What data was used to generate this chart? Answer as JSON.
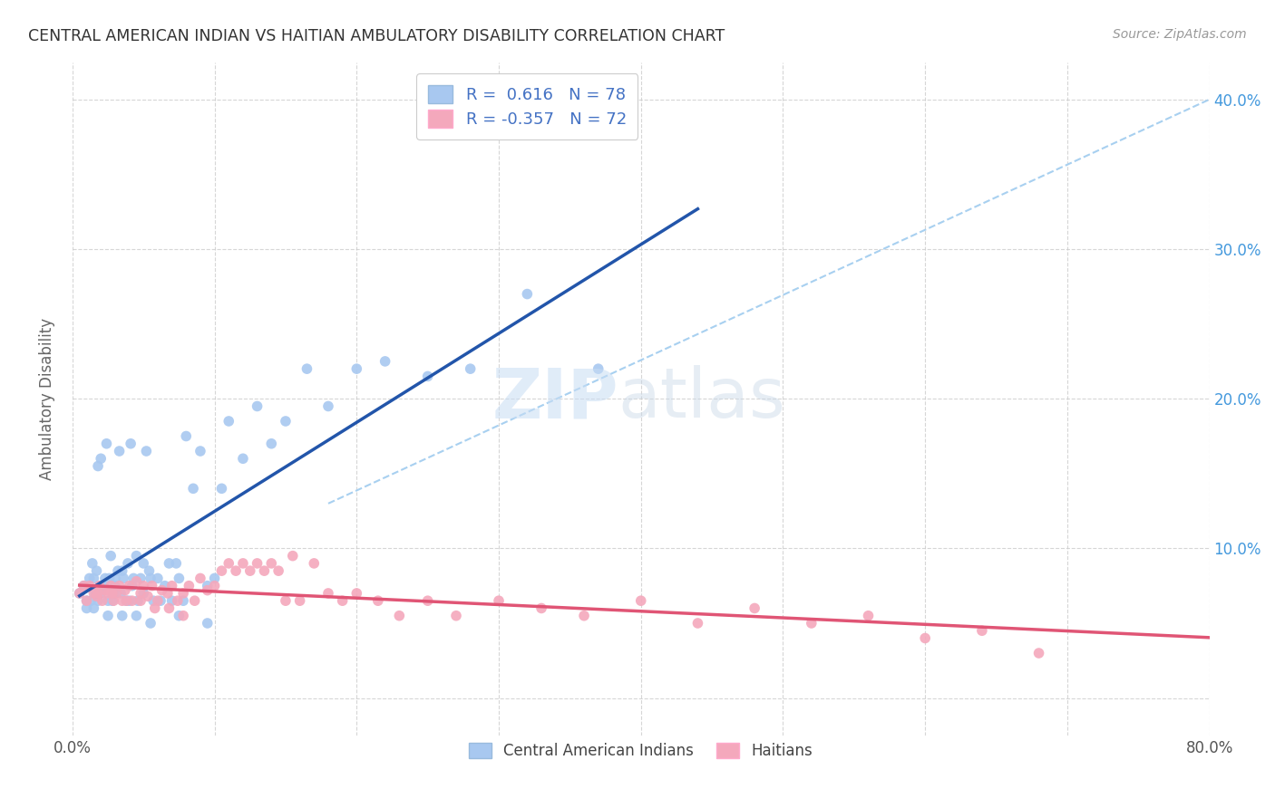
{
  "title": "CENTRAL AMERICAN INDIAN VS HAITIAN AMBULATORY DISABILITY CORRELATION CHART",
  "source": "Source: ZipAtlas.com",
  "ylabel": "Ambulatory Disability",
  "xlim": [
    0.0,
    0.8
  ],
  "ylim": [
    -0.025,
    0.425
  ],
  "R_blue": 0.616,
  "N_blue": 78,
  "R_pink": -0.357,
  "N_pink": 72,
  "blue_color": "#A8C8F0",
  "pink_color": "#F4A8BC",
  "blue_line_color": "#2255AA",
  "pink_line_color": "#E05575",
  "dashed_line_color": "#A8D0F0",
  "legend_text_color": "#4472C4",
  "background_color": "#FFFFFF",
  "blue_scatter_x": [
    0.005,
    0.008,
    0.01,
    0.012,
    0.013,
    0.014,
    0.015,
    0.016,
    0.017,
    0.018,
    0.018,
    0.02,
    0.02,
    0.022,
    0.023,
    0.024,
    0.025,
    0.026,
    0.027,
    0.028,
    0.029,
    0.03,
    0.03,
    0.032,
    0.033,
    0.034,
    0.035,
    0.036,
    0.038,
    0.039,
    0.04,
    0.041,
    0.042,
    0.043,
    0.045,
    0.046,
    0.048,
    0.05,
    0.05,
    0.052,
    0.054,
    0.055,
    0.057,
    0.06,
    0.062,
    0.065,
    0.068,
    0.07,
    0.073,
    0.075,
    0.078,
    0.08,
    0.085,
    0.09,
    0.095,
    0.1,
    0.105,
    0.11,
    0.12,
    0.13,
    0.14,
    0.15,
    0.165,
    0.18,
    0.2,
    0.22,
    0.25,
    0.28,
    0.32,
    0.37,
    0.01,
    0.015,
    0.025,
    0.035,
    0.045,
    0.055,
    0.075,
    0.095
  ],
  "blue_scatter_y": [
    0.07,
    0.075,
    0.065,
    0.08,
    0.065,
    0.09,
    0.08,
    0.07,
    0.085,
    0.065,
    0.155,
    0.07,
    0.16,
    0.075,
    0.08,
    0.17,
    0.065,
    0.08,
    0.095,
    0.065,
    0.07,
    0.075,
    0.08,
    0.085,
    0.165,
    0.07,
    0.085,
    0.08,
    0.065,
    0.09,
    0.065,
    0.17,
    0.075,
    0.08,
    0.095,
    0.065,
    0.08,
    0.07,
    0.09,
    0.165,
    0.085,
    0.08,
    0.065,
    0.08,
    0.065,
    0.075,
    0.09,
    0.065,
    0.09,
    0.08,
    0.065,
    0.175,
    0.14,
    0.165,
    0.075,
    0.08,
    0.14,
    0.185,
    0.16,
    0.195,
    0.17,
    0.185,
    0.22,
    0.195,
    0.22,
    0.225,
    0.215,
    0.22,
    0.27,
    0.22,
    0.06,
    0.06,
    0.055,
    0.055,
    0.055,
    0.05,
    0.055,
    0.05
  ],
  "pink_scatter_x": [
    0.005,
    0.008,
    0.01,
    0.012,
    0.015,
    0.017,
    0.019,
    0.021,
    0.023,
    0.025,
    0.027,
    0.029,
    0.031,
    0.033,
    0.035,
    0.037,
    0.04,
    0.042,
    0.045,
    0.048,
    0.05,
    0.053,
    0.056,
    0.06,
    0.063,
    0.067,
    0.07,
    0.074,
    0.078,
    0.082,
    0.086,
    0.09,
    0.095,
    0.1,
    0.105,
    0.11,
    0.115,
    0.12,
    0.125,
    0.13,
    0.135,
    0.14,
    0.145,
    0.15,
    0.155,
    0.16,
    0.17,
    0.18,
    0.19,
    0.2,
    0.215,
    0.23,
    0.25,
    0.27,
    0.3,
    0.33,
    0.36,
    0.4,
    0.44,
    0.48,
    0.52,
    0.56,
    0.6,
    0.64,
    0.68,
    0.018,
    0.028,
    0.038,
    0.048,
    0.058,
    0.068,
    0.078
  ],
  "pink_scatter_y": [
    0.07,
    0.075,
    0.065,
    0.075,
    0.07,
    0.068,
    0.075,
    0.065,
    0.072,
    0.07,
    0.075,
    0.065,
    0.07,
    0.075,
    0.065,
    0.072,
    0.075,
    0.065,
    0.078,
    0.07,
    0.075,
    0.068,
    0.075,
    0.065,
    0.072,
    0.07,
    0.075,
    0.065,
    0.07,
    0.075,
    0.065,
    0.08,
    0.072,
    0.075,
    0.085,
    0.09,
    0.085,
    0.09,
    0.085,
    0.09,
    0.085,
    0.09,
    0.085,
    0.065,
    0.095,
    0.065,
    0.09,
    0.07,
    0.065,
    0.07,
    0.065,
    0.055,
    0.065,
    0.055,
    0.065,
    0.06,
    0.055,
    0.065,
    0.05,
    0.06,
    0.05,
    0.055,
    0.04,
    0.045,
    0.03,
    0.07,
    0.07,
    0.065,
    0.065,
    0.06,
    0.06,
    0.055
  ],
  "blue_line_x0": 0.005,
  "blue_line_x1": 0.44,
  "pink_line_x0": 0.005,
  "pink_line_x1": 0.8,
  "dash_line_x0": 0.18,
  "dash_line_y0": 0.13,
  "dash_line_x1": 0.8,
  "dash_line_y1": 0.4
}
